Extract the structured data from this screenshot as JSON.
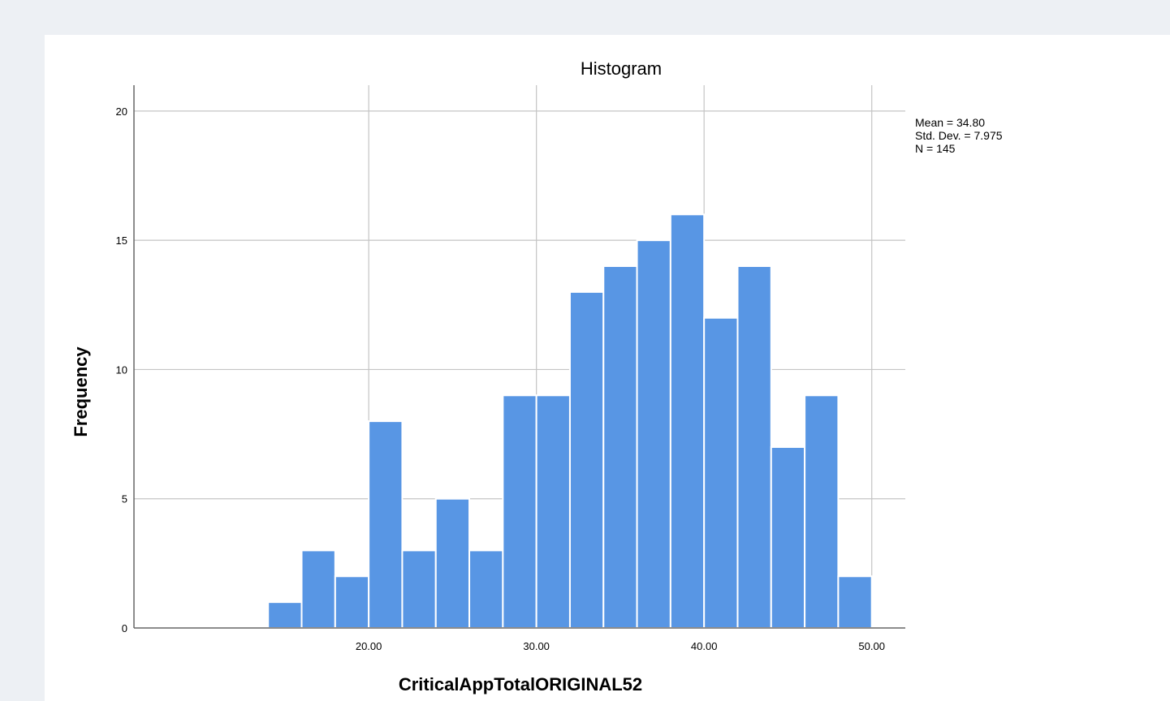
{
  "chart_data": {
    "type": "bar",
    "title": "Histogram",
    "xlabel": "CriticalAppTotalORIGINAL52",
    "ylabel": "Frequency",
    "bin_width": 2,
    "bins": [
      {
        "start": 14,
        "end": 16,
        "count": 1
      },
      {
        "start": 16,
        "end": 18,
        "count": 3
      },
      {
        "start": 18,
        "end": 20,
        "count": 2
      },
      {
        "start": 20,
        "end": 22,
        "count": 8
      },
      {
        "start": 22,
        "end": 24,
        "count": 3
      },
      {
        "start": 24,
        "end": 26,
        "count": 5
      },
      {
        "start": 26,
        "end": 28,
        "count": 3
      },
      {
        "start": 28,
        "end": 30,
        "count": 9
      },
      {
        "start": 30,
        "end": 32,
        "count": 9
      },
      {
        "start": 32,
        "end": 34,
        "count": 13
      },
      {
        "start": 34,
        "end": 36,
        "count": 14
      },
      {
        "start": 36,
        "end": 38,
        "count": 15
      },
      {
        "start": 38,
        "end": 40,
        "count": 16
      },
      {
        "start": 40,
        "end": 42,
        "count": 12
      },
      {
        "start": 42,
        "end": 44,
        "count": 14
      },
      {
        "start": 44,
        "end": 46,
        "count": 7
      },
      {
        "start": 46,
        "end": 48,
        "count": 9
      },
      {
        "start": 48,
        "end": 50,
        "count": 2
      }
    ],
    "xlim": [
      6,
      52
    ],
    "ylim": [
      0,
      21
    ],
    "x_ticks": [
      {
        "value": 20,
        "label": "20.00"
      },
      {
        "value": 30,
        "label": "30.00"
      },
      {
        "value": 40,
        "label": "40.00"
      },
      {
        "value": 50,
        "label": "50.00"
      }
    ],
    "y_ticks": [
      {
        "value": 0,
        "label": "0"
      },
      {
        "value": 5,
        "label": "5"
      },
      {
        "value": 10,
        "label": "10"
      },
      {
        "value": 15,
        "label": "15"
      },
      {
        "value": 20,
        "label": "20"
      }
    ],
    "grid": true,
    "bar_color": "#5896e4",
    "grid_color": "#c4c4c4",
    "stats": {
      "mean": "Mean = 34.80",
      "std_dev": "Std. Dev. = 7.975",
      "n": "N = 145"
    },
    "stats_placement": "top-right"
  }
}
